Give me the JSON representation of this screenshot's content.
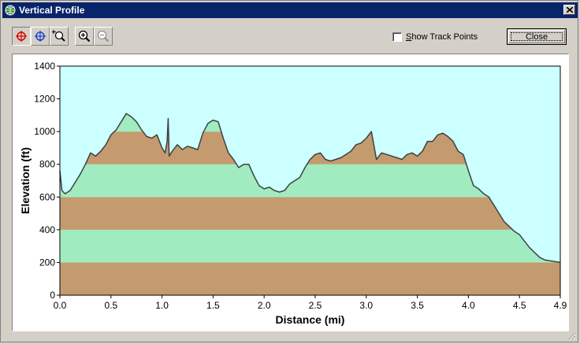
{
  "window": {
    "title": "Vertical Profile"
  },
  "toolbar": {
    "buttons": [
      {
        "name": "select-point-red-icon"
      },
      {
        "name": "select-point-blue-icon"
      },
      {
        "name": "zoom-region-icon"
      },
      {
        "name": "zoom-in-icon"
      },
      {
        "name": "zoom-out-icon"
      }
    ]
  },
  "options": {
    "show_track_points_label": "Show Track Points",
    "show_track_points_checked": false
  },
  "close_button_label": "Close",
  "colors": {
    "sky": "#ccffff",
    "band_dark": "#c39b6e",
    "band_light": "#a0ecc0",
    "profile_line": "#404040",
    "titlebar": "#0a246a"
  },
  "chart_data": {
    "type": "area",
    "xlabel": "Distance   (mi)",
    "ylabel": "Elevation (ft)",
    "xlim": [
      0,
      4.9
    ],
    "ylim": [
      0,
      1400
    ],
    "xticks": [
      "0.0",
      "0.5",
      "1.0",
      "1.5",
      "2.0",
      "2.5",
      "3.0",
      "3.5",
      "4.0",
      "4.5",
      "4.9"
    ],
    "xtick_values": [
      0,
      0.5,
      1.0,
      1.5,
      2.0,
      2.5,
      3.0,
      3.5,
      4.0,
      4.5,
      4.9
    ],
    "yticks": [
      "0",
      "200",
      "400",
      "600",
      "800",
      "1000",
      "1200",
      "1400"
    ],
    "ytick_values": [
      0,
      200,
      400,
      600,
      800,
      1000,
      1200,
      1400
    ],
    "elevation_bands": [
      {
        "from": 0,
        "to": 200,
        "color": "dark"
      },
      {
        "from": 200,
        "to": 400,
        "color": "light"
      },
      {
        "from": 400,
        "to": 600,
        "color": "dark"
      },
      {
        "from": 600,
        "to": 800,
        "color": "light"
      },
      {
        "from": 800,
        "to": 1000,
        "color": "dark"
      },
      {
        "from": 1000,
        "to": 1200,
        "color": "light"
      }
    ],
    "x": [
      0.0,
      0.02,
      0.05,
      0.1,
      0.15,
      0.2,
      0.25,
      0.3,
      0.35,
      0.4,
      0.45,
      0.5,
      0.55,
      0.6,
      0.65,
      0.7,
      0.75,
      0.8,
      0.85,
      0.9,
      0.95,
      1.0,
      1.03,
      1.05,
      1.06,
      1.07,
      1.08,
      1.1,
      1.15,
      1.2,
      1.25,
      1.3,
      1.35,
      1.4,
      1.45,
      1.5,
      1.55,
      1.6,
      1.65,
      1.7,
      1.75,
      1.8,
      1.85,
      1.9,
      1.95,
      2.0,
      2.05,
      2.1,
      2.15,
      2.2,
      2.25,
      2.3,
      2.35,
      2.4,
      2.45,
      2.5,
      2.55,
      2.6,
      2.65,
      2.7,
      2.75,
      2.8,
      2.85,
      2.9,
      2.95,
      3.0,
      3.05,
      3.1,
      3.15,
      3.2,
      3.25,
      3.3,
      3.35,
      3.4,
      3.45,
      3.5,
      3.55,
      3.6,
      3.65,
      3.7,
      3.75,
      3.8,
      3.85,
      3.9,
      3.95,
      4.0,
      4.05,
      4.1,
      4.15,
      4.2,
      4.25,
      4.3,
      4.35,
      4.4,
      4.45,
      4.5,
      4.55,
      4.6,
      4.65,
      4.7,
      4.75,
      4.8,
      4.85,
      4.9
    ],
    "y": [
      760,
      640,
      620,
      640,
      690,
      740,
      800,
      870,
      850,
      880,
      920,
      980,
      1010,
      1060,
      1110,
      1090,
      1060,
      1010,
      970,
      960,
      980,
      900,
      870,
      940,
      1080,
      850,
      860,
      880,
      920,
      890,
      910,
      900,
      890,
      990,
      1050,
      1070,
      1060,
      960,
      870,
      830,
      780,
      800,
      800,
      730,
      670,
      650,
      660,
      640,
      630,
      640,
      680,
      700,
      720,
      780,
      830,
      860,
      870,
      830,
      820,
      830,
      840,
      860,
      880,
      920,
      930,
      960,
      1000,
      830,
      870,
      860,
      850,
      840,
      830,
      860,
      870,
      850,
      880,
      940,
      940,
      980,
      990,
      970,
      940,
      880,
      860,
      760,
      670,
      650,
      620,
      600,
      550,
      500,
      450,
      420,
      390,
      370,
      330,
      290,
      260,
      230,
      215,
      210,
      205,
      200
    ]
  }
}
